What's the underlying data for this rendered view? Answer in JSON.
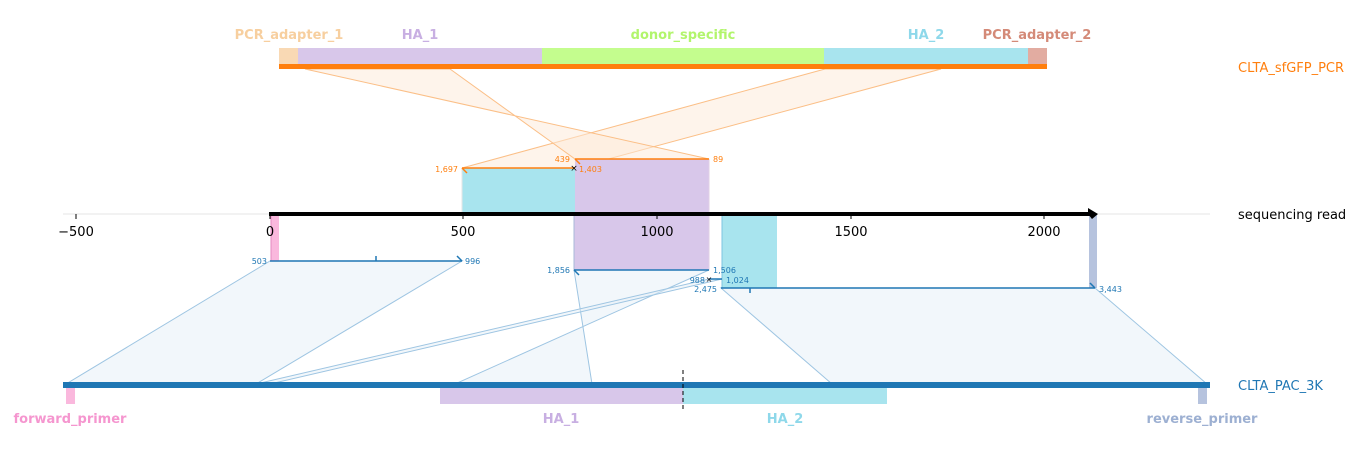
{
  "colors": {
    "pcr_track": "#ff7f0e",
    "pac_track": "#1f77b4",
    "read_axis": "#000000",
    "pcr_adapter_1": "#f9d9b4",
    "ha_1": "#d8c7ea",
    "donor_specific": "#c4fd8e",
    "ha_2": "#a8e4ee",
    "pcr_adapter_2": "#e2aca1",
    "forward_primer": "#fab8dd",
    "reverse_primer": "#b6c3de",
    "pcr_adapter_1_text": "#f7cf9f",
    "ha_1_text": "#c8afe2",
    "donor_specific_text": "#b2f56c",
    "ha_2_text": "#8ed8ea",
    "pcr_adapter_2_text": "#d48a78",
    "forward_primer_text": "#f596cf",
    "reverse_primer_text": "#9db0d2"
  },
  "tracks": {
    "top_label": "CLTA_sfGFP_PCR",
    "read_label": "sequencing read",
    "bottom_label": "CLTA_PAC_3K"
  },
  "features_top": [
    {
      "id": "pcr_adapter_1",
      "label": "PCR_adapter_1"
    },
    {
      "id": "ha_1",
      "label": "HA_1"
    },
    {
      "id": "donor_specific",
      "label": "donor_specific"
    },
    {
      "id": "ha_2",
      "label": "HA_2"
    },
    {
      "id": "pcr_adapter_2",
      "label": "PCR_adapter_2"
    }
  ],
  "features_bottom": [
    {
      "id": "forward_primer",
      "label": "forward_primer"
    },
    {
      "id": "ha_1",
      "label": "HA_1"
    },
    {
      "id": "ha_2",
      "label": "HA_2"
    },
    {
      "id": "reverse_primer",
      "label": "reverse_primer"
    }
  ],
  "axis": {
    "ticks": [
      "−500",
      "0",
      "500",
      "1000",
      "1500",
      "2000"
    ]
  },
  "alignments": {
    "top_a_start": "1,697",
    "top_b_start": "439",
    "top_a_end": "1,403",
    "top_b_end": "89",
    "bot_a_start": "503",
    "bot_a_end": "996",
    "bot_b_start": "1,856",
    "bot_b_end": "1,506",
    "bot_c_start": "988",
    "bot_c_end": "1,024",
    "bot_d_start": "2,475",
    "bot_d_end": "3,443"
  }
}
